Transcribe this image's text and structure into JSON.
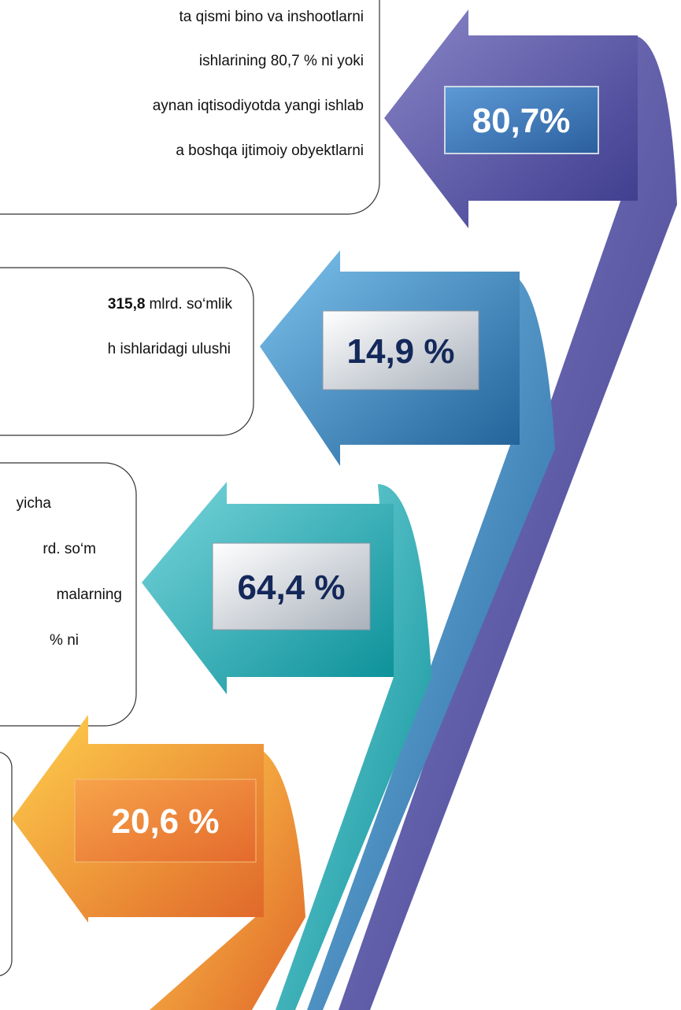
{
  "boxes": [
    {
      "lines": [
        "ta qismi bino va inshootlarni",
        "ishlarining 80,7 % ni yoki",
        "aynan iqtisodiyotda yangi ishlab",
        "a boshqa ijtimoiy obyektlarni"
      ]
    },
    {
      "lines": [
        {
          "bold": "315,8",
          "text": "mlrd. so‘mlik"
        },
        "h ishlaridagi ulushi"
      ]
    },
    {
      "lines": [
        "yicha",
        "rd. so‘m",
        "malarning",
        "% ni"
      ]
    }
  ],
  "arrows": [
    {
      "label": "80,7%"
    },
    {
      "label": "14,9 %"
    },
    {
      "label": "64,4 %"
    },
    {
      "label": "20,6 %"
    }
  ]
}
